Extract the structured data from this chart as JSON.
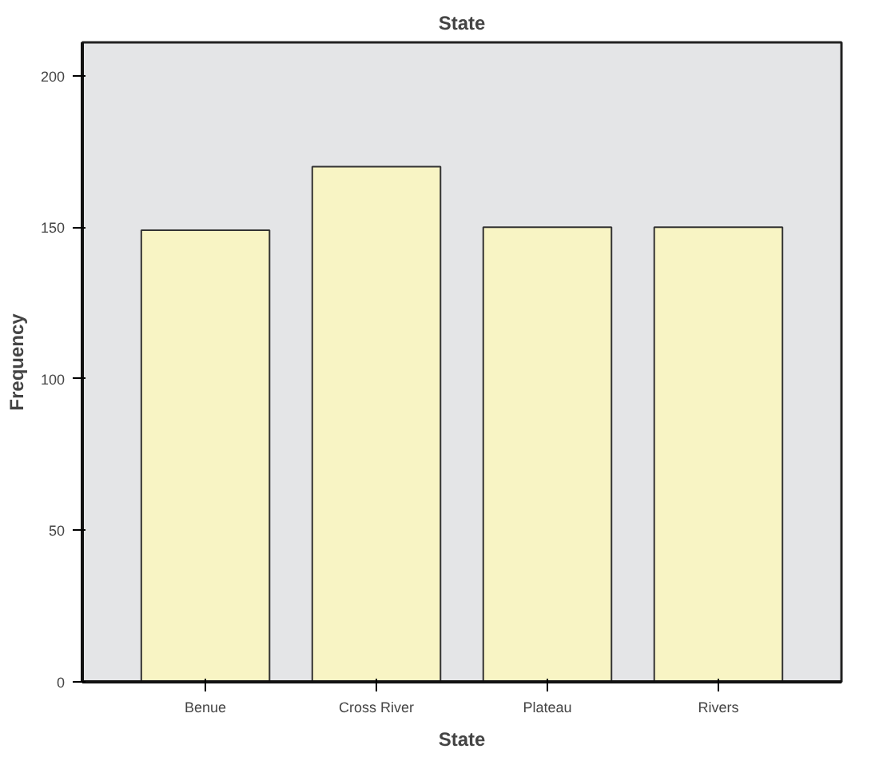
{
  "chart_data": {
    "type": "bar",
    "title": "State",
    "xlabel": "State",
    "ylabel": "Frequency",
    "categories": [
      "Benue",
      "Cross River",
      "Plateau",
      "Rivers"
    ],
    "values": [
      149,
      170,
      150,
      150
    ],
    "color": "#f8f4c4",
    "ylim": [
      0,
      211
    ],
    "yticks": [
      0,
      50,
      100,
      150,
      200
    ],
    "grid": false
  }
}
